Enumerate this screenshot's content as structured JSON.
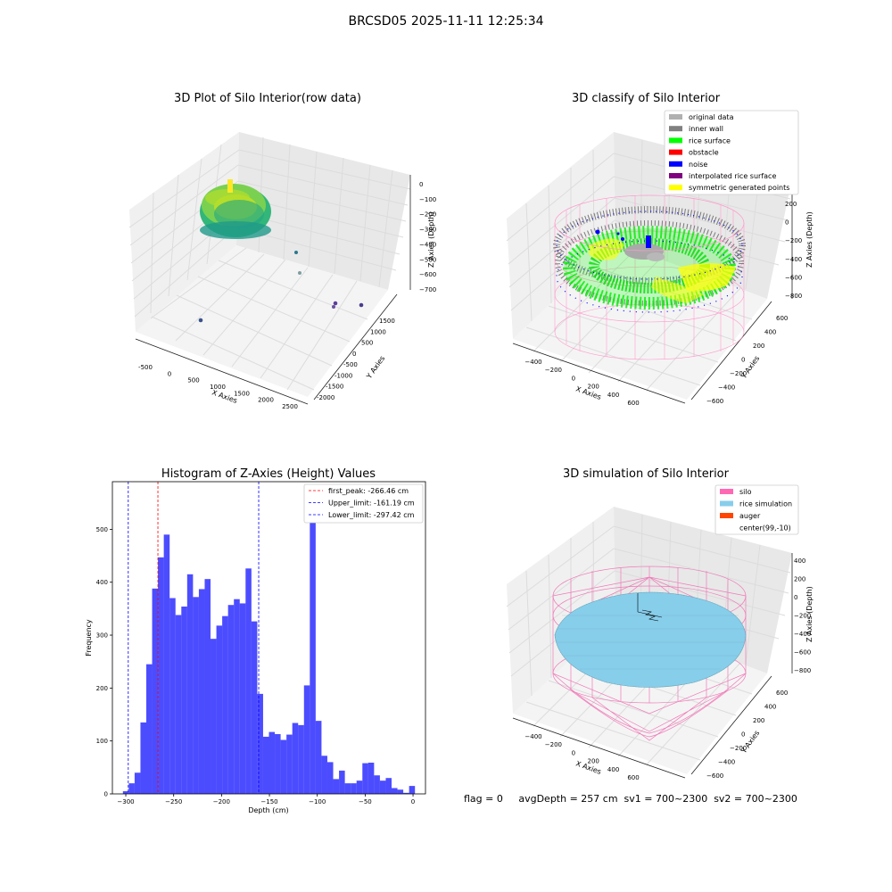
{
  "suptitle": "BRCSD05 2025-11-11 12:25:34",
  "panels": {
    "raw": {
      "title": "3D Plot of Silo Interior(row data)",
      "xlabel": "X Axies",
      "ylabel": "Y Axies",
      "zlabel": "Z Axies (Depth)",
      "xticks": [
        "-500",
        "0",
        "500",
        "1000",
        "1500",
        "2000",
        "2500"
      ],
      "yticks": [
        "1500",
        "1000",
        "500",
        "0",
        "-500",
        "-1000",
        "-1500",
        "-2000"
      ],
      "zticks": [
        "0",
        "−100",
        "−200",
        "−300",
        "−400",
        "−500",
        "−600",
        "−700"
      ]
    },
    "classify": {
      "title": "3D classify of Silo Interior",
      "xlabel": "X Axies",
      "ylabel": "Y Axies",
      "zlabel": "Z Axies (Depth)",
      "xticks": [
        "−400",
        "−200",
        "0",
        "200",
        "400",
        "600"
      ],
      "yticks": [
        "600",
        "400",
        "200",
        "0",
        "−200",
        "−400",
        "−600"
      ],
      "zticks": [
        "200",
        "0",
        "−200",
        "−400",
        "−600",
        "−800"
      ],
      "partial_ztick": "0",
      "legend": [
        {
          "label": "original data",
          "color": "#b0b0b0"
        },
        {
          "label": "inner wall",
          "color": "#808080"
        },
        {
          "label": "rice surface",
          "color": "#00ff00"
        },
        {
          "label": "obstacle",
          "color": "#ff0000"
        },
        {
          "label": "noise",
          "color": "#0000ff"
        },
        {
          "label": "interpolated rice surface",
          "color": "#800080"
        },
        {
          "label": "symmetric generated points",
          "color": "#ffff00"
        }
      ]
    },
    "simulation": {
      "title": "3D simulation of Silo Interior",
      "xlabel": "X Axies",
      "ylabel": "Y Axies",
      "zlabel": "Z Axies (Depth)",
      "xticks": [
        "−400",
        "−200",
        "0",
        "200",
        "400",
        "600"
      ],
      "yticks": [
        "600",
        "400",
        "200",
        "0",
        "−200",
        "−400",
        "−600"
      ],
      "zticks": [
        "400",
        "200",
        "0",
        "−200",
        "−400",
        "−600",
        "−800"
      ],
      "legend": [
        {
          "label": "silo",
          "color": "#ff69b4"
        },
        {
          "label": "rice simulation",
          "color": "#87ceeb"
        },
        {
          "label": "auger",
          "color": "#ff4500"
        },
        {
          "label": "center(99,-10)",
          "color": ""
        }
      ]
    }
  },
  "footer": "flag = 0     avgDepth = 257 cm  sv1 = 700~2300  sv2 = 700~2300",
  "chart_data": {
    "type": "bar",
    "title": "Histogram of Z-Axies (Height) Values",
    "xlabel": "Depth (cm)",
    "ylabel": "Frequency",
    "xlim": [
      -314,
      13
    ],
    "ylim": [
      0,
      590
    ],
    "xticks": [
      -300,
      -250,
      -200,
      -150,
      -100,
      -50,
      0
    ],
    "xtick_labels": [
      "−300",
      "−250",
      "−200",
      "−150",
      "−100",
      "−50",
      "0"
    ],
    "yticks": [
      0,
      100,
      200,
      300,
      400,
      500
    ],
    "bar_color": "#0000ff",
    "bin_start": -303,
    "bin_width": 6.1,
    "values": [
      5,
      20,
      40,
      135,
      245,
      388,
      447,
      490,
      370,
      338,
      354,
      415,
      372,
      387,
      406,
      293,
      318,
      336,
      357,
      368,
      360,
      426,
      326,
      189,
      108,
      117,
      113,
      102,
      112,
      134,
      130,
      205,
      565,
      138,
      72,
      60,
      28,
      44,
      20,
      20,
      25,
      58,
      59,
      35,
      25,
      30,
      11,
      8,
      2,
      15
    ],
    "vlines": [
      {
        "label": "first_peak: -266.46 cm",
        "x": -266.46,
        "color": "#ff0000"
      },
      {
        "label": "Upper_limit: -161.19 cm",
        "x": -161.19,
        "color": "#0000ff"
      },
      {
        "label": "Lower_limit: -297.42 cm",
        "x": -297.42,
        "color": "#0000ff"
      }
    ],
    "legend_position": "upper right"
  }
}
